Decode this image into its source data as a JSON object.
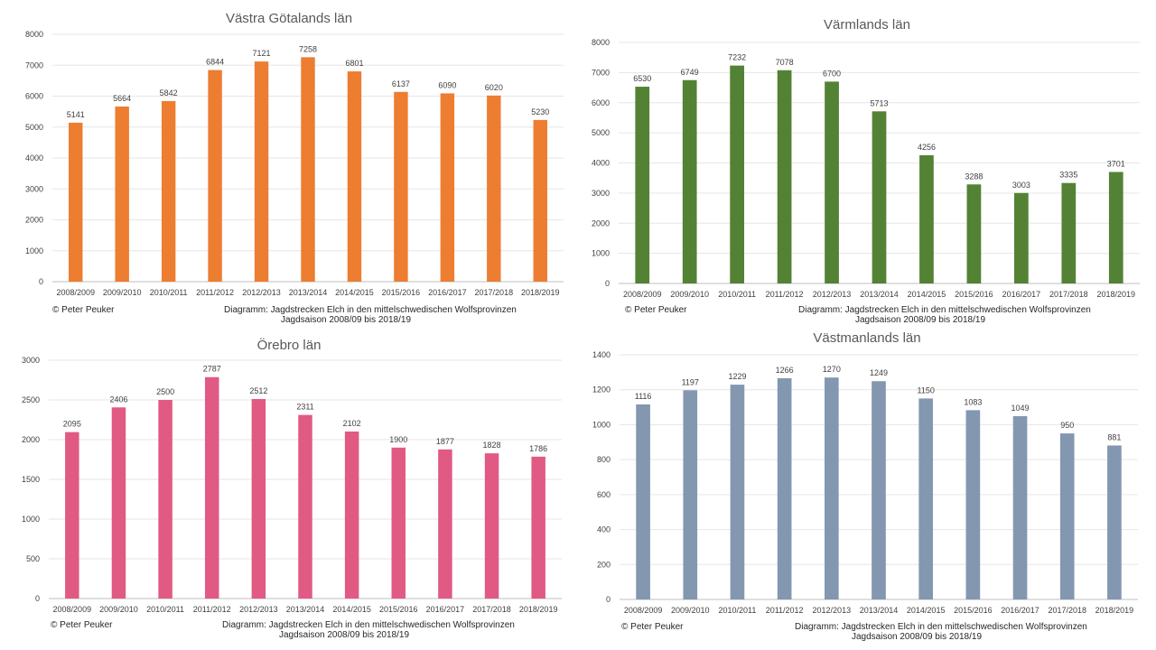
{
  "charts": [
    {
      "title": "Västra Götalands län",
      "color": "#ED7D31",
      "credit": "© Peter Peuker",
      "caption_line1": "Diagramm:  Jagdstrecken Elch in den mittelschwedischen Wolfsprovinzen",
      "caption_line2": "Jagdsaison 2008/09 bis 2018/19"
    },
    {
      "title": "Värmlands län",
      "color": "#548235",
      "credit": "© Peter Peuker",
      "caption_line1": "Diagramm:  Jagdstrecken Elch in den mittelschwedischen Wolfsprovinzen",
      "caption_line2": "Jagdsaison 2008/09 bis 2018/19"
    },
    {
      "title": "Örebro län",
      "color": "#E05A84",
      "credit": "© Peter Peuker",
      "caption_line1": "Diagramm:  Jagdstrecken Elch in den mittelschwedischen Wolfsprovinzen",
      "caption_line2": "Jagdsaison 2008/09 bis 2018/19"
    },
    {
      "title": "Västmanlands län",
      "color": "#8497B0",
      "credit": "© Peter Peuker",
      "caption_line1": "Diagramm:  Jagdstrecken Elch in den mittelschwedischen Wolfsprovinzen",
      "caption_line2": "Jagdsaison 2008/09 bis 2018/19"
    }
  ],
  "chart_data": [
    {
      "type": "bar",
      "title": "Västra Götalands län",
      "categories": [
        "2008/2009",
        "2009/2010",
        "2010/2011",
        "2011/2012",
        "2012/2013",
        "2013/2014",
        "2014/2015",
        "2015/2016",
        "2016/2017",
        "2017/2018",
        "2018/2019"
      ],
      "values": [
        5141,
        5664,
        5842,
        6844,
        7121,
        7258,
        6801,
        6137,
        6090,
        6020,
        5230
      ],
      "ylim": [
        0,
        8000
      ],
      "yticks": [
        0,
        1000,
        2000,
        3000,
        4000,
        5000,
        6000,
        7000,
        8000
      ],
      "xlabel": "",
      "ylabel": "",
      "grid": true,
      "legend": "none",
      "data_labels": true
    },
    {
      "type": "bar",
      "title": "Värmlands län",
      "categories": [
        "2008/2009",
        "2009/2010",
        "2010/2011",
        "2011/2012",
        "2012/2013",
        "2013/2014",
        "2014/2015",
        "2015/2016",
        "2016/2017",
        "2017/2018",
        "2018/2019"
      ],
      "values": [
        6530,
        6749,
        7232,
        7078,
        6700,
        5713,
        4256,
        3288,
        3003,
        3335,
        3701
      ],
      "ylim": [
        0,
        8000
      ],
      "yticks": [
        0,
        1000,
        2000,
        3000,
        4000,
        5000,
        6000,
        7000,
        8000
      ],
      "xlabel": "",
      "ylabel": "",
      "grid": true,
      "legend": "none",
      "data_labels": true
    },
    {
      "type": "bar",
      "title": "Örebro län",
      "categories": [
        "2008/2009",
        "2009/2010",
        "2010/2011",
        "2011/2012",
        "2012/2013",
        "2013/2014",
        "2014/2015",
        "2015/2016",
        "2016/2017",
        "2017/2018",
        "2018/2019"
      ],
      "values": [
        2095,
        2406,
        2500,
        2787,
        2512,
        2311,
        2102,
        1900,
        1877,
        1828,
        1786
      ],
      "ylim": [
        0,
        3000
      ],
      "yticks": [
        0,
        500,
        1000,
        1500,
        2000,
        2500,
        3000
      ],
      "xlabel": "",
      "ylabel": "",
      "grid": true,
      "legend": "none",
      "data_labels": true
    },
    {
      "type": "bar",
      "title": "Västmanlands län",
      "categories": [
        "2008/2009",
        "2009/2010",
        "2010/2011",
        "2011/2012",
        "2012/2013",
        "2013/2014",
        "2014/2015",
        "2015/2016",
        "2016/2017",
        "2017/2018",
        "2018/2019"
      ],
      "values": [
        1116,
        1197,
        1229,
        1266,
        1270,
        1249,
        1150,
        1083,
        1049,
        950,
        881
      ],
      "ylim": [
        0,
        1400
      ],
      "yticks": [
        0,
        200,
        400,
        600,
        800,
        1000,
        1200,
        1400
      ],
      "xlabel": "",
      "ylabel": "",
      "grid": true,
      "legend": "none",
      "data_labels": true
    }
  ]
}
